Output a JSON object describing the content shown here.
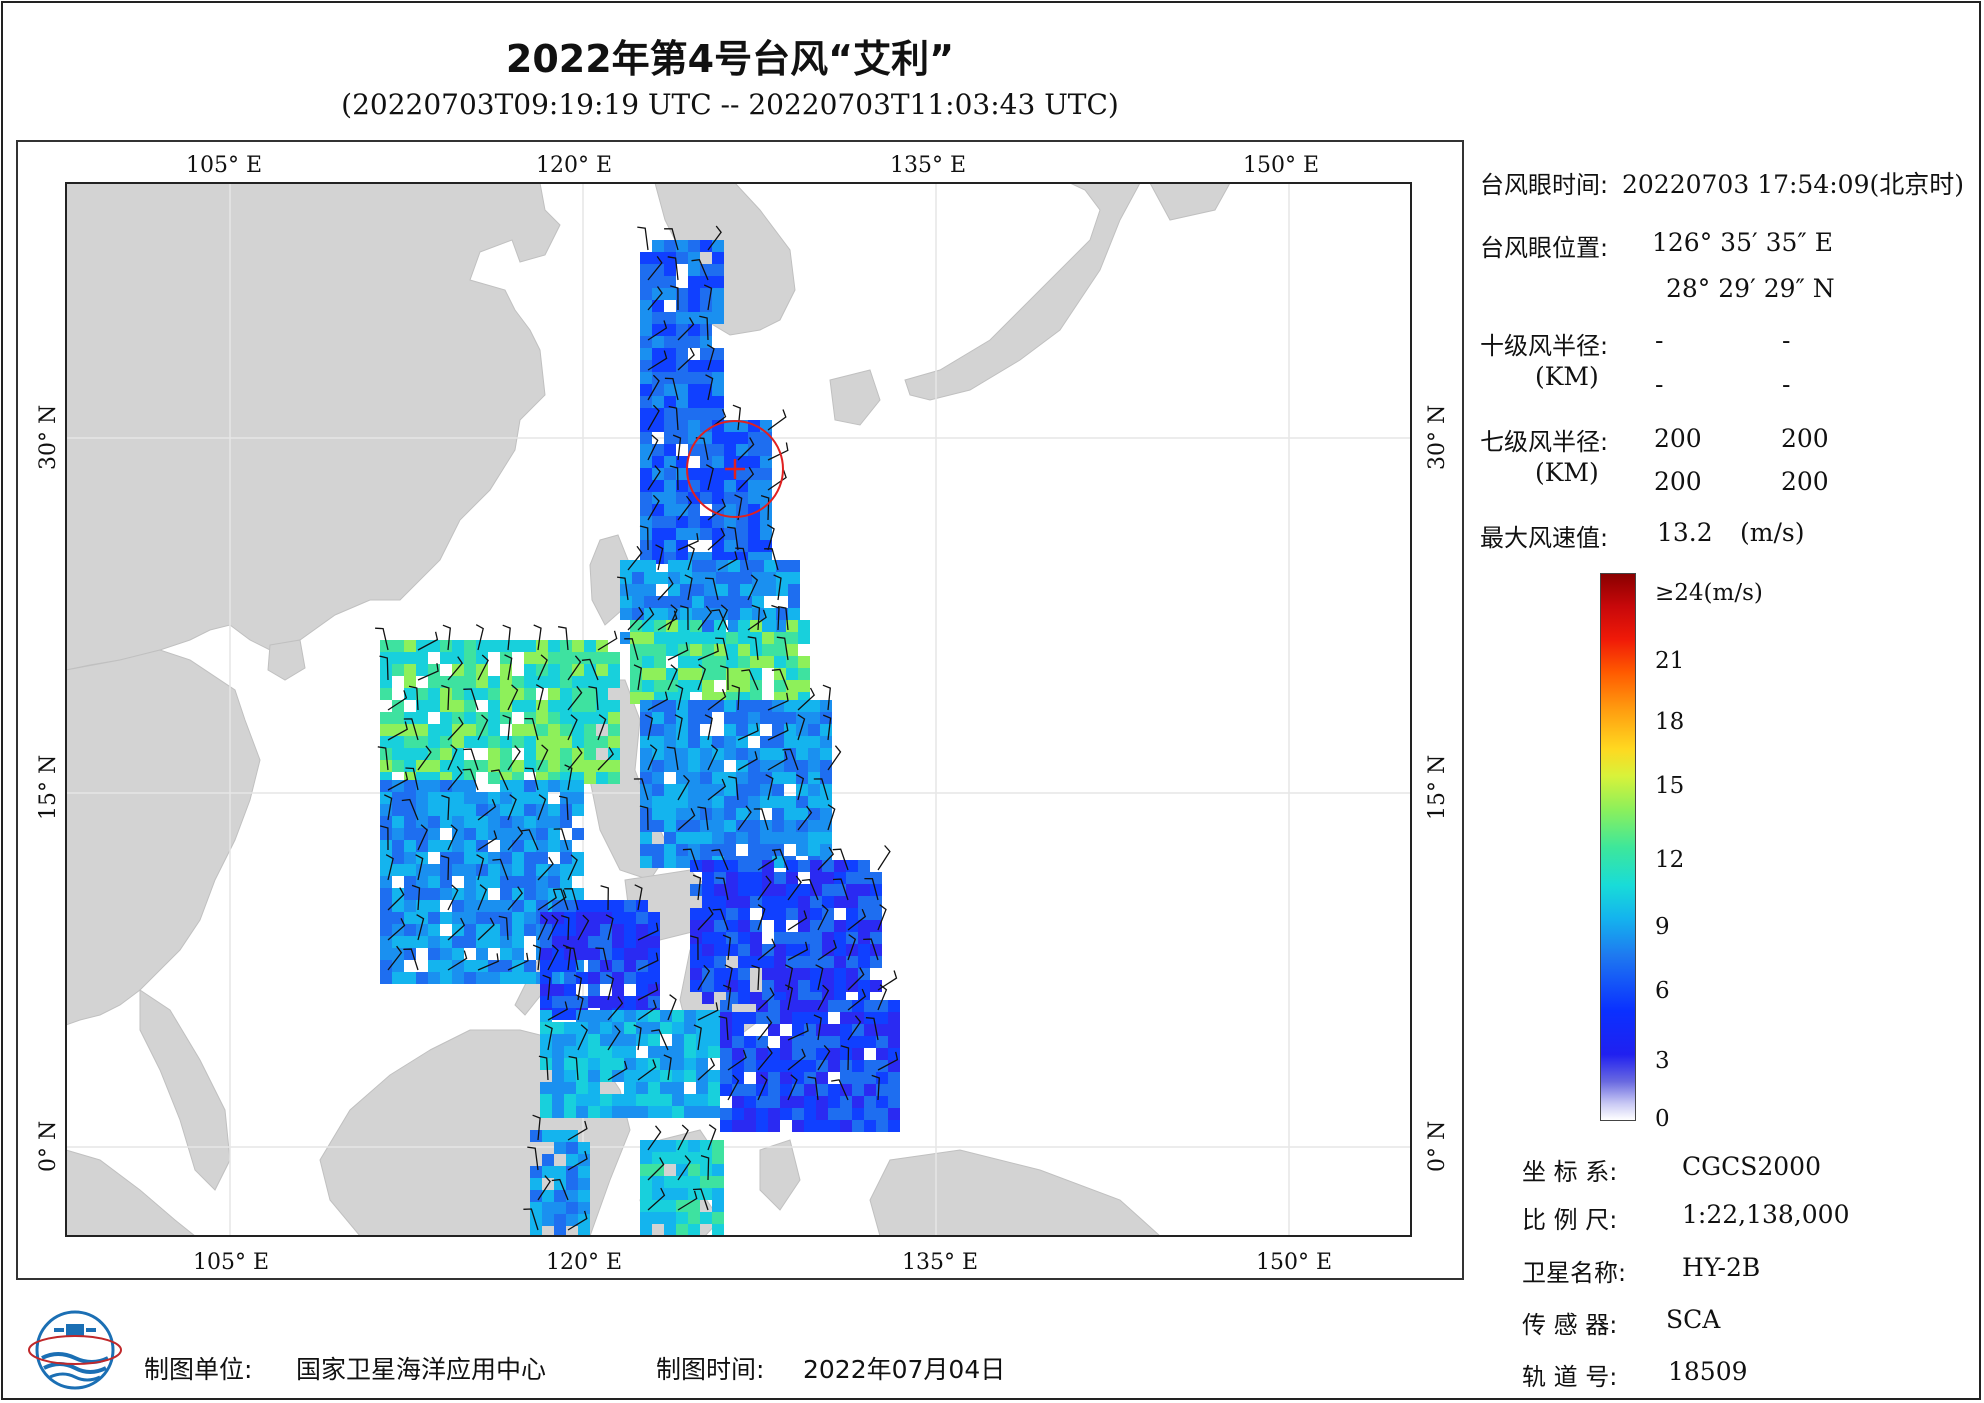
{
  "title": "2022年第4号台风“艾利”",
  "subtitle": "(20220703T09:19:19 UTC -- 20220703T11:03:43 UTC)",
  "map": {
    "lon_ticks": [
      "105° E",
      "120° E",
      "135° E",
      "150° E"
    ],
    "lat_ticks": [
      "30° N",
      "15° N",
      "0° N"
    ],
    "colors": {
      "land": "#d3d3d3",
      "sea": "#ffffff",
      "eye_circle": "#e02020",
      "grid": "#e8e8e8"
    }
  },
  "eye": {
    "time_label": "台风眼时间:",
    "time_value": "20220703 17:54:09(北京时)",
    "pos_label": "台风眼位置:",
    "lon": "126° 35′ 35″ E",
    "lat": "28° 29′ 29″ N"
  },
  "radius10": {
    "label": "十级风半径:",
    "unit": "(KM)",
    "values": [
      "-",
      "-",
      "-",
      "-"
    ]
  },
  "radius7": {
    "label": "七级风半径:",
    "unit": "(KM)",
    "values": [
      "200",
      "200",
      "200",
      "200"
    ]
  },
  "max_wind": {
    "label": "最大风速值:",
    "value": "13.2",
    "unit": "(m/s)"
  },
  "legend": {
    "ticks": [
      "≥24(m/s)",
      "21",
      "18",
      "15",
      "12",
      "9",
      "6",
      "3",
      "0"
    ],
    "colors": [
      "#8a0000",
      "#f01a08",
      "#ff9e10",
      "#ffd820",
      "#8ef05a",
      "#18dcd8",
      "#1e78f0",
      "#2020f0",
      "#ffffff"
    ]
  },
  "meta": [
    {
      "label": "坐 标 系:",
      "value": "CGCS2000"
    },
    {
      "label": "比 例 尺:",
      "value": "1:22,138,000"
    },
    {
      "label": "卫星名称:",
      "value": "HY-2B"
    },
    {
      "label": "传 感 器:",
      "value": "SCA"
    },
    {
      "label": "轨 道 号:",
      "value": "18509"
    }
  ],
  "footer": {
    "org_label": "制图单位:",
    "org": "国家卫星海洋应用中心",
    "time_label": "制图时间:",
    "date": "2022年07月04日"
  }
}
